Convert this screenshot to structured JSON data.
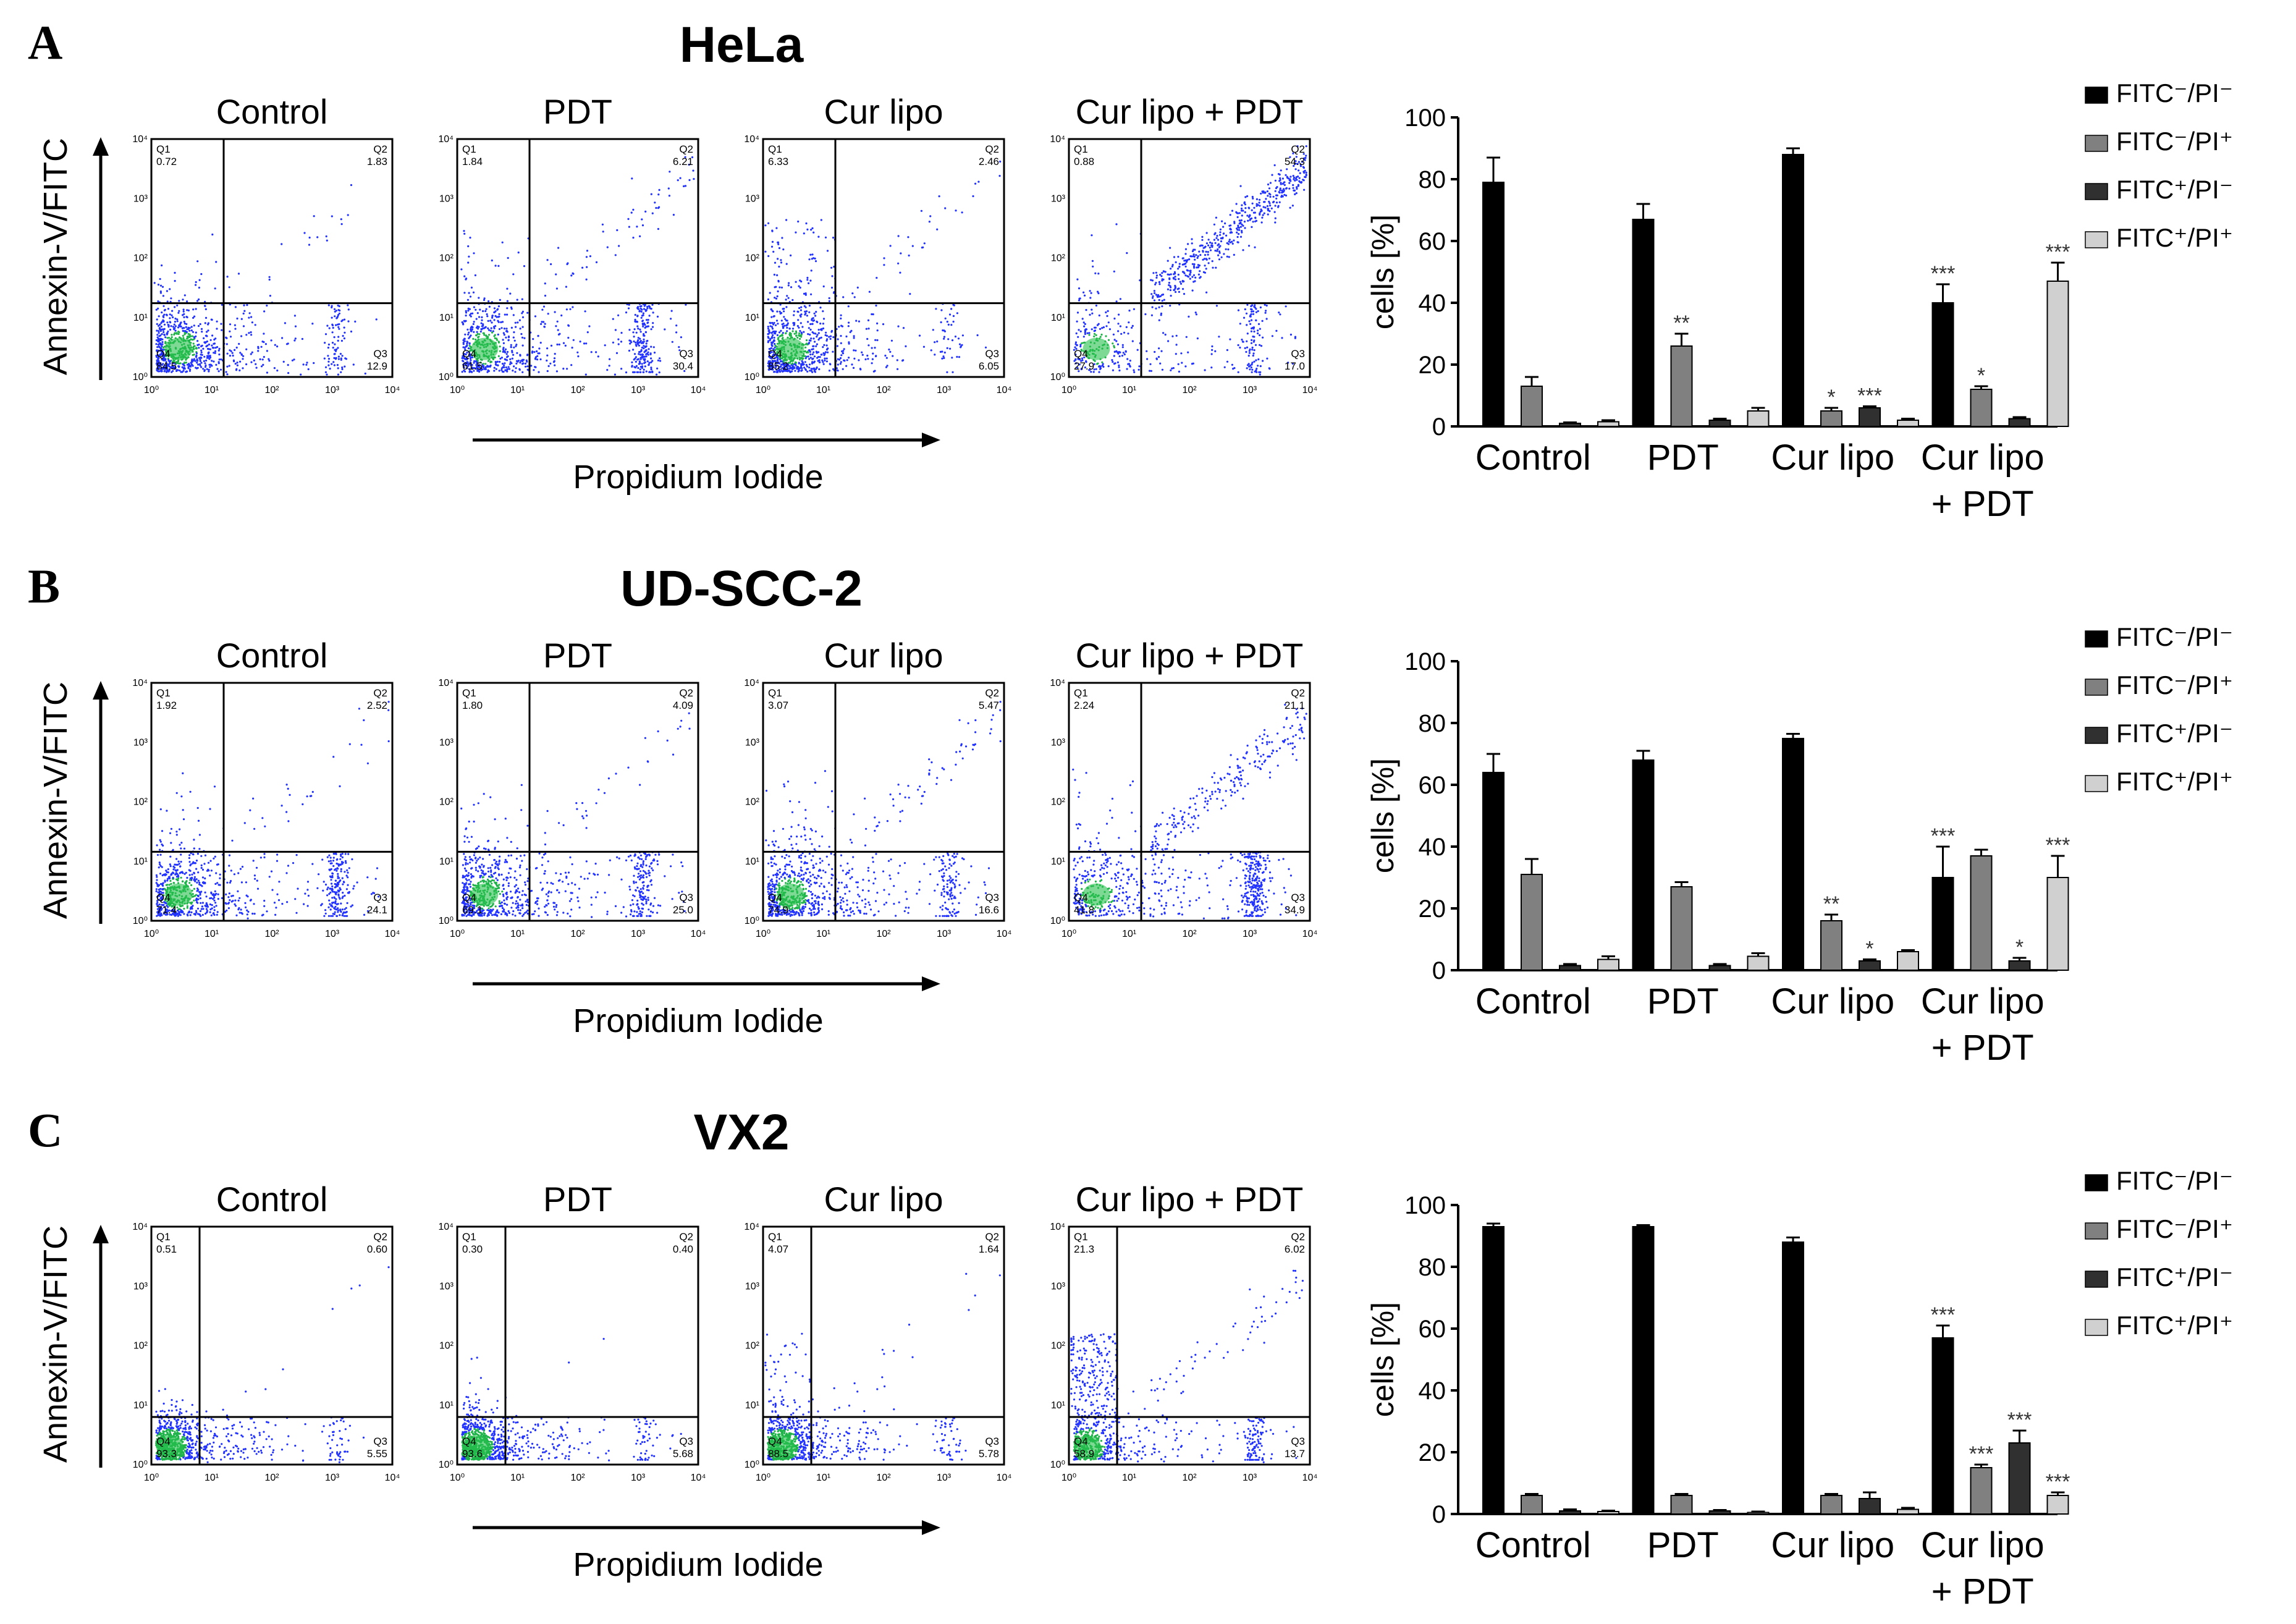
{
  "shared": {
    "flow_y_axis_label": "Annexin-V/FITC",
    "flow_x_axis_label": "Propidium Iodide",
    "bar_y_axis_label": "cells [%]",
    "bar_y_ticks": [
      "0",
      "20",
      "40",
      "60",
      "80",
      "100"
    ],
    "flow_tick_labels": [
      "10⁰",
      "10¹",
      "10²",
      "10³",
      "10⁴"
    ],
    "quadrant_names": [
      "Q1",
      "Q2",
      "Q3",
      "Q4"
    ],
    "legend": [
      {
        "label": "FITC⁻/PI⁻",
        "color": "#000000"
      },
      {
        "label": "FITC⁻/PI⁺",
        "color": "#808080"
      },
      {
        "label": "FITC⁺/PI⁻",
        "color": "#303030"
      },
      {
        "label": "FITC⁺/PI⁺",
        "color": "#d0d0d0"
      }
    ]
  },
  "panels": [
    {
      "letter": "A",
      "title": "HeLa",
      "flow_plots": [
        {
          "label": "Control",
          "q1": "0.72",
          "q2": "1.83",
          "q3": "12.9",
          "q4": "84.5"
        },
        {
          "label": "PDT",
          "q1": "1.84",
          "q2": "6.21",
          "q3": "30.4",
          "q4": "61.5"
        },
        {
          "label": "Cur lipo",
          "q1": "6.33",
          "q2": "2.46",
          "q3": "6.05",
          "q4": "85.2"
        },
        {
          "label": "Cur lipo + PDT",
          "q1": "0.88",
          "q2": "54.3",
          "q3": "17.0",
          "q4": "27.9"
        }
      ]
    },
    {
      "letter": "B",
      "title": "UD-SCC-2",
      "flow_plots": [
        {
          "label": "Control",
          "q1": "1.92",
          "q2": "2.52",
          "q3": "24.1",
          "q4": "71.4"
        },
        {
          "label": "PDT",
          "q1": "1.80",
          "q2": "4.09",
          "q3": "25.0",
          "q4": "69.1"
        },
        {
          "label": "Cur lipo",
          "q1": "3.07",
          "q2": "5.47",
          "q3": "16.6",
          "q4": "74.9"
        },
        {
          "label": "Cur lipo + PDT",
          "q1": "2.24",
          "q2": "21.1",
          "q3": "34.9",
          "q4": "41.8"
        }
      ]
    },
    {
      "letter": "C",
      "title": "VX2",
      "flow_plots": [
        {
          "label": "Control",
          "q1": "0.51",
          "q2": "0.60",
          "q3": "5.55",
          "q4": "93.3"
        },
        {
          "label": "PDT",
          "q1": "0.30",
          "q2": "0.40",
          "q3": "5.68",
          "q4": "93.6"
        },
        {
          "label": "Cur lipo",
          "q1": "4.07",
          "q2": "1.64",
          "q3": "5.78",
          "q4": "88.5"
        },
        {
          "label": "Cur lipo + PDT",
          "q1": "21.3",
          "q2": "6.02",
          "q3": "13.7",
          "q4": "58.9"
        }
      ]
    }
  ],
  "chart_data": [
    {
      "type": "bar",
      "title": "HeLa",
      "ylabel": "cells [%]",
      "ylim": [
        0,
        100
      ],
      "categories": [
        "Control",
        "PDT",
        "Cur lipo",
        "Cur lipo\n+ PDT"
      ],
      "series": [
        {
          "name": "FITC⁻/PI⁻",
          "values": [
            79,
            67,
            88,
            40
          ],
          "errors": [
            8,
            5,
            2,
            6
          ],
          "sig": [
            "",
            "",
            "",
            "***"
          ]
        },
        {
          "name": "FITC⁻/PI⁺",
          "values": [
            13,
            26,
            5,
            12
          ],
          "errors": [
            3,
            4,
            1,
            1
          ],
          "sig": [
            "",
            "**",
            "*",
            "*"
          ]
        },
        {
          "name": "FITC⁺/PI⁻",
          "values": [
            1,
            2,
            6,
            2.5
          ],
          "errors": [
            0.3,
            0.5,
            0.5,
            0.5
          ],
          "sig": [
            "",
            "",
            "***",
            ""
          ]
        },
        {
          "name": "FITC⁺/PI⁺",
          "values": [
            1.5,
            5,
            2,
            47
          ],
          "errors": [
            0.5,
            1,
            0.5,
            6
          ],
          "sig": [
            "",
            "",
            "",
            "***"
          ]
        }
      ]
    },
    {
      "type": "bar",
      "title": "UD-SCC-2",
      "ylabel": "cells [%]",
      "ylim": [
        0,
        100
      ],
      "categories": [
        "Control",
        "PDT",
        "Cur lipo",
        "Cur lipo\n+ PDT"
      ],
      "series": [
        {
          "name": "FITC⁻/PI⁻",
          "values": [
            64,
            68,
            75,
            30
          ],
          "errors": [
            6,
            3,
            1.5,
            10
          ],
          "sig": [
            "",
            "",
            "",
            "***"
          ]
        },
        {
          "name": "FITC⁻/PI⁺",
          "values": [
            31,
            27,
            16,
            37
          ],
          "errors": [
            5,
            1.5,
            2,
            2
          ],
          "sig": [
            "",
            "",
            "**",
            ""
          ]
        },
        {
          "name": "FITC⁺/PI⁻",
          "values": [
            1.5,
            1.5,
            3,
            3
          ],
          "errors": [
            0.5,
            0.5,
            0.5,
            1
          ],
          "sig": [
            "",
            "",
            "*",
            "*"
          ]
        },
        {
          "name": "FITC⁺/PI⁺",
          "values": [
            3.5,
            4.5,
            6,
            30
          ],
          "errors": [
            1,
            1,
            0.5,
            7
          ],
          "sig": [
            "",
            "",
            "",
            "***"
          ]
        }
      ]
    },
    {
      "type": "bar",
      "title": "VX2",
      "ylabel": "cells [%]",
      "ylim": [
        0,
        100
      ],
      "categories": [
        "Control",
        "PDT",
        "Cur lipo",
        "Cur lipo\n+ PDT"
      ],
      "series": [
        {
          "name": "FITC⁻/PI⁻",
          "values": [
            93,
            93,
            88,
            57
          ],
          "errors": [
            1,
            0.5,
            1.5,
            4
          ],
          "sig": [
            "",
            "",
            "",
            "***"
          ]
        },
        {
          "name": "FITC⁻/PI⁺",
          "values": [
            6,
            6,
            6,
            15
          ],
          "errors": [
            0.5,
            0.5,
            0.5,
            1
          ],
          "sig": [
            "",
            "",
            "",
            "***"
          ]
        },
        {
          "name": "FITC⁺/PI⁻",
          "values": [
            1,
            1,
            5,
            23
          ],
          "errors": [
            0.5,
            0.3,
            2,
            4
          ],
          "sig": [
            "",
            "",
            "",
            "***"
          ]
        },
        {
          "name": "FITC⁺/PI⁺",
          "values": [
            0.8,
            0.5,
            1.5,
            6
          ],
          "errors": [
            0.3,
            0.3,
            0.5,
            1
          ],
          "sig": [
            "",
            "",
            "",
            "***"
          ]
        }
      ]
    }
  ]
}
